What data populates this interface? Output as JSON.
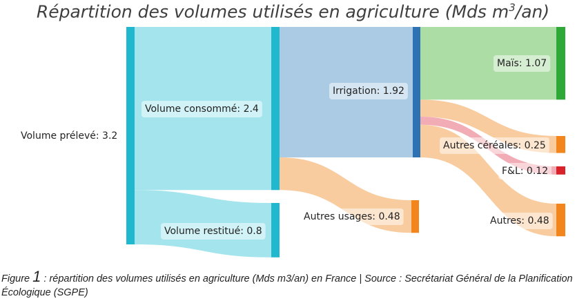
{
  "chart_data": {
    "type": "sankey",
    "title": {
      "text": "Répartition des volumes utilisés en agriculture (Mds m",
      "sup": "3",
      "suffix": "/an)"
    },
    "nodes": [
      {
        "id": "preleve",
        "label": "Volume prélevé: 3.2",
        "value": 3.2,
        "color": "#1fb8cf"
      },
      {
        "id": "consomme",
        "label": "Volume consommé: 2.4",
        "value": 2.4,
        "color": "#1fb8cf"
      },
      {
        "id": "restitue",
        "label": "Volume restitué: 0.8",
        "value": 0.8,
        "color": "#1fb8cf"
      },
      {
        "id": "irrigation",
        "label": "Irrigation: 1.92",
        "value": 1.92,
        "color": "#2f72b3"
      },
      {
        "id": "autres_usages",
        "label": "Autres usages: 0.48",
        "value": 0.48,
        "color": "#f2861d"
      },
      {
        "id": "mais",
        "label": "Maïs: 1.07",
        "value": 1.07,
        "color": "#2ea836"
      },
      {
        "id": "cereales",
        "label": "Autres céréales: 0.25",
        "value": 0.25,
        "color": "#f2861d"
      },
      {
        "id": "fl",
        "label": "F&L: 0.12",
        "value": 0.12,
        "color": "#d8232a"
      },
      {
        "id": "autres",
        "label": "Autres: 0.48",
        "value": 0.48,
        "color": "#f2861d"
      }
    ],
    "links": [
      {
        "source": "preleve",
        "target": "consomme",
        "value": 2.4,
        "color": "#9ee3ec"
      },
      {
        "source": "preleve",
        "target": "restitue",
        "value": 0.8,
        "color": "#9ee3ec"
      },
      {
        "source": "consomme",
        "target": "irrigation",
        "value": 1.92,
        "color": "#a5c8e2"
      },
      {
        "source": "consomme",
        "target": "autres_usages",
        "value": 0.48,
        "color": "#f8c99a"
      },
      {
        "source": "irrigation",
        "target": "mais",
        "value": 1.07,
        "color": "#a6dba0"
      },
      {
        "source": "irrigation",
        "target": "cereales",
        "value": 0.25,
        "color": "#f8c99a"
      },
      {
        "source": "irrigation",
        "target": "fl",
        "value": 0.12,
        "color": "#f0a8b1"
      },
      {
        "source": "irrigation",
        "target": "autres",
        "value": 0.48,
        "color": "#f8c99a"
      }
    ]
  },
  "caption": {
    "prefix": "Figure ",
    "number": "1",
    "text": " : répartition des volumes utilisés en agriculture (Mds m3/an) en France | Source : Secrétariat Général de la Planification Écologique (SGPE)"
  }
}
